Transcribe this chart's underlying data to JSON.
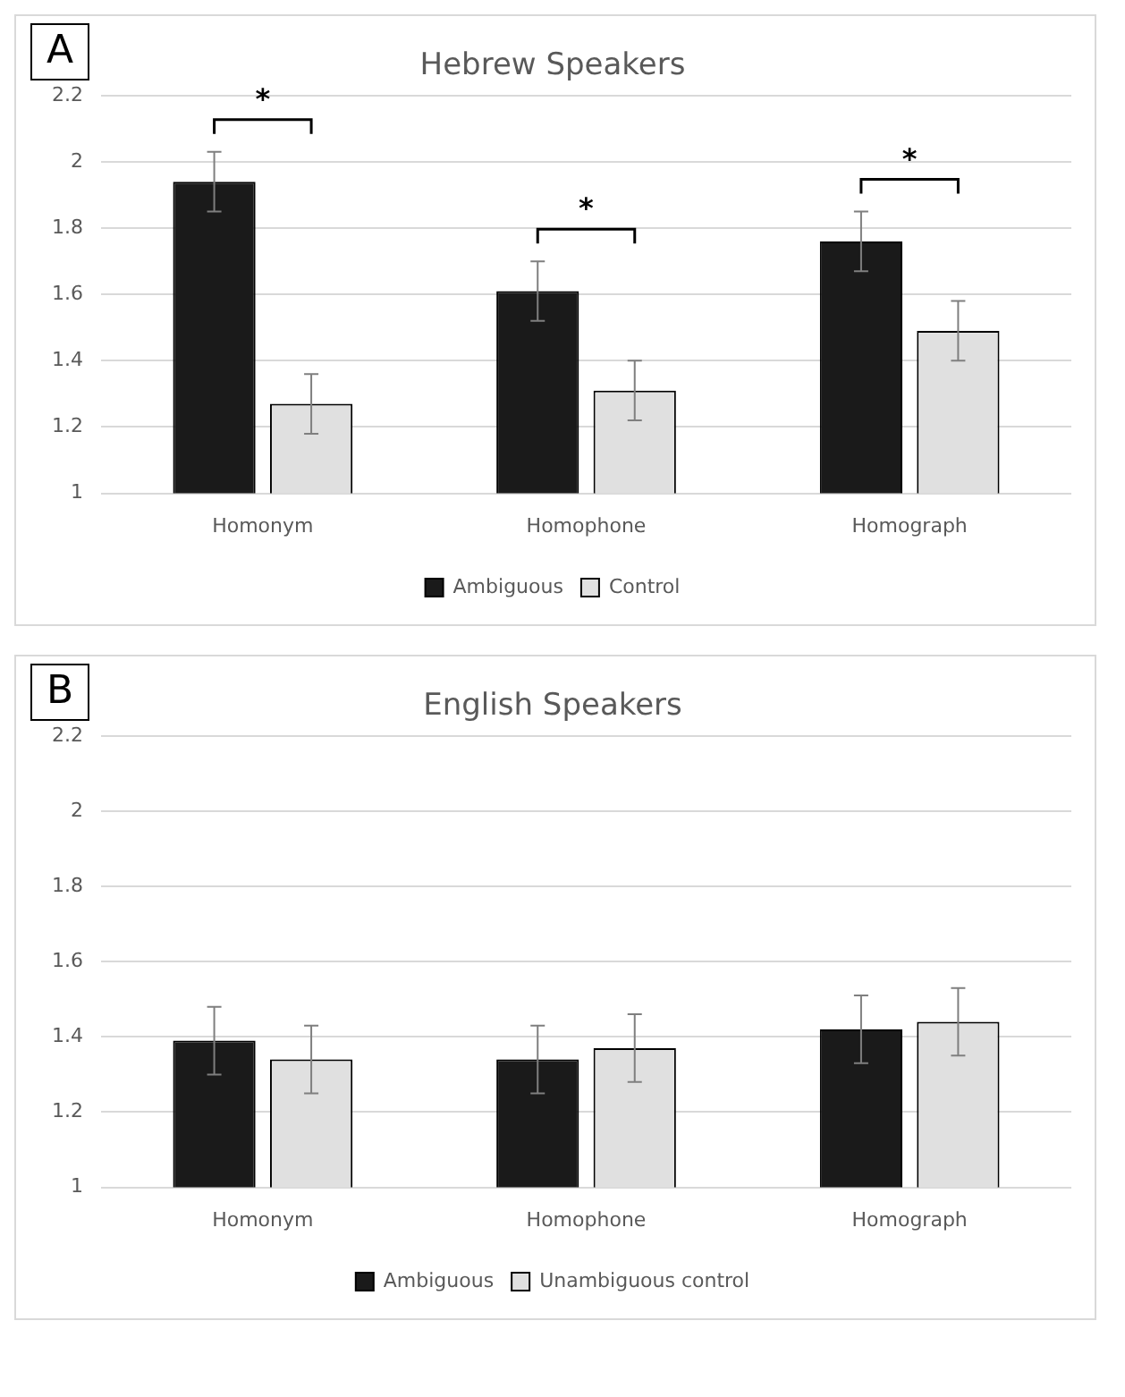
{
  "chart_data": [
    {
      "type": "bar",
      "title": "Hebrew Speakers",
      "categories": [
        "Homonym",
        "Homophone",
        "Homograph"
      ],
      "series": [
        {
          "name": "Ambiguous",
          "color": "#1a1a1a",
          "values": [
            1.94,
            1.61,
            1.76
          ],
          "errors": [
            0.09,
            0.09,
            0.09
          ]
        },
        {
          "name": "Control",
          "color": "#e0e0e0",
          "values": [
            1.27,
            1.31,
            1.49
          ],
          "errors": [
            0.09,
            0.09,
            0.09
          ]
        }
      ],
      "ylim": [
        1,
        2.2
      ],
      "yticks": [
        1,
        1.2,
        1.4,
        1.6,
        1.8,
        2,
        2.2
      ],
      "grid": "y",
      "legend": "bottom",
      "annotations": [
        "A",
        "*",
        "*",
        "*"
      ]
    },
    {
      "type": "bar",
      "title": "English Speakers",
      "categories": [
        "Homonym",
        "Homophone",
        "Homograph"
      ],
      "series": [
        {
          "name": "Ambiguous",
          "color": "#1a1a1a",
          "values": [
            1.39,
            1.34,
            1.42
          ],
          "errors": [
            0.09,
            0.09,
            0.09
          ]
        },
        {
          "name": "Unambiguous control",
          "color": "#e0e0e0",
          "values": [
            1.34,
            1.37,
            1.44
          ],
          "errors": [
            0.09,
            0.09,
            0.09
          ]
        }
      ],
      "ylim": [
        1,
        2.2
      ],
      "yticks": [
        1,
        1.2,
        1.4,
        1.6,
        1.8,
        2,
        2.2
      ],
      "grid": "y",
      "legend": "bottom",
      "annotations": [
        "B"
      ]
    }
  ]
}
